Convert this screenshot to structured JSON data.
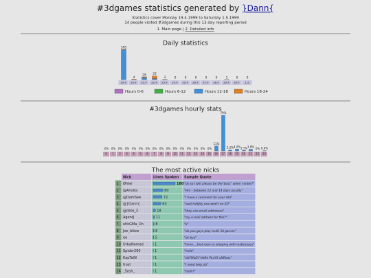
{
  "header": {
    "title": "#3dgames statistics generated by ",
    "author": "}Dann{",
    "lines": [
      "Statistics cover Monday 19.4.1999 to Saturday 1.5.1999",
      "14 people visited #3dgames during this 13-day reporting period"
    ],
    "nav": [
      "1. Main page |",
      "2. Detailed info"
    ]
  },
  "chart_data": [
    {
      "type": "bar",
      "stacked": true,
      "title": "Daily statistics",
      "categories": [
        "19.4",
        "20.4",
        "21.4",
        "22.4",
        "23.4",
        "24.4",
        "25.4",
        "26.4",
        "27.4",
        "28.4",
        "29.4",
        "30.4",
        "1.5"
      ],
      "series": [
        {
          "name": "Hours 0-6",
          "color": "#b070c0",
          "values": [
            0,
            0,
            0,
            0,
            0,
            0,
            0,
            0,
            0,
            0,
            0,
            0,
            0
          ]
        },
        {
          "name": "Hours 6-12",
          "color": "#40b040",
          "values": [
            0,
            0,
            0,
            0,
            0,
            0,
            0,
            0,
            0,
            0,
            0,
            0,
            0
          ]
        },
        {
          "name": "Hours 12-18",
          "color": "#4090d8",
          "values": [
            300,
            0,
            20,
            10,
            0,
            0,
            0,
            0,
            0,
            0,
            0,
            0,
            0
          ]
        },
        {
          "name": "Hours 18-24",
          "color": "#e08020",
          "values": [
            5,
            4,
            8,
            27,
            2,
            0,
            0,
            0,
            0,
            0,
            1,
            0,
            0
          ]
        }
      ],
      "totals": [
        305,
        4,
        28,
        37,
        2,
        0,
        0,
        0,
        0,
        0,
        1,
        0,
        0
      ]
    },
    {
      "type": "bar",
      "title": "#3dgames hourly stats",
      "color": "#4090d8",
      "categories": [
        "0",
        "1",
        "2",
        "3",
        "4",
        "5",
        "6",
        "7",
        "8",
        "9",
        "10",
        "11",
        "12",
        "13",
        "14",
        "15",
        "16",
        "17",
        "18",
        "19",
        "20",
        "21",
        "22",
        "23"
      ],
      "values": [
        0,
        0,
        0,
        0,
        0,
        0,
        0,
        0,
        0,
        0,
        0,
        0,
        0,
        0,
        0,
        0,
        11,
        79,
        2.2,
        4.0,
        1.1,
        3.8,
        0,
        0.6
      ],
      "value_labels": [
        "0%",
        "0%",
        "0%",
        "0%",
        "0%",
        "0%",
        "0%",
        "0%",
        "0%",
        "0%",
        "0%",
        "0%",
        "0%",
        "0%",
        "0%",
        "0%",
        "11%",
        "79%",
        "2.2%",
        "4.0%",
        "1.1%",
        "3.8%",
        "0%",
        "0.6%"
      ]
    }
  ],
  "table": {
    "title": "The most active nicks",
    "columns": [
      "Nick",
      "Lines Spoken",
      "Sample Quote"
    ],
    "rows": [
      [
        1,
        "Øhter",
        180,
        "\"ok so I will always be the\"boss\" when I enter?\""
      ],
      [
        2,
        "@Anoita",
        80,
        "\"Hm - between 12 and 14 days usually\""
      ],
      [
        3,
        "@DarkSee",
        72,
        "\"I have a comment for your site\""
      ],
      [
        4,
        "@}Dann{",
        63,
        "\"wad halljbly one kont't en I0?\""
      ],
      [
        5,
        "@date_3",
        18,
        "\"they are email addresses\""
      ],
      [
        6,
        "AgentJ",
        11,
        "\"my e-mail address for this?\""
      ],
      [
        7,
        "ehkGMa_On",
        8,
        "\"k\""
      ],
      [
        8,
        "Joe_bliow",
        6,
        "\"do you guys play multi 3d games\""
      ],
      [
        9,
        "ee",
        5,
        "\"ok bye\""
      ],
      [
        10,
        "UrbaNomad",
        1,
        "\"hmm....that room is shipping with mattresses\""
      ],
      [
        11,
        "Spider200",
        1,
        "\"hello\""
      ],
      [
        12,
        "KapTaiN",
        1,
        "\"oKYMaDY HeRe PLaYS uNReaL\""
      ],
      [
        13,
        "frost",
        1,
        "\"I need help plz\""
      ],
      [
        14,
        "_Sash_",
        1,
        "\"hello?\""
      ]
    ]
  }
}
